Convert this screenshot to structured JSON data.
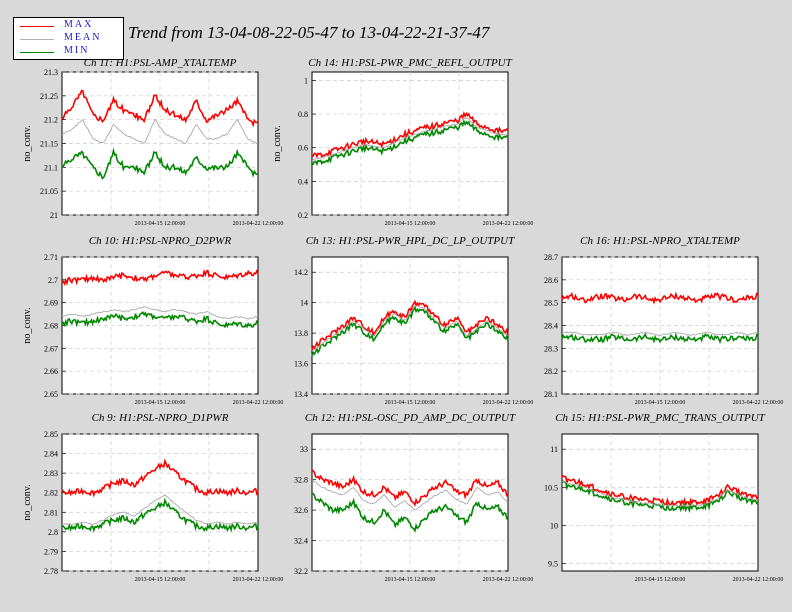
{
  "title": "Trend from 13-04-08-22-05-47 to 13-04-22-21-37-47",
  "legend": [
    {
      "label": "MAX",
      "color": "#ff0000"
    },
    {
      "label": "MEAN",
      "color": "#b0b0b0"
    },
    {
      "label": "MIN",
      "color": "#008800"
    }
  ],
  "colors": {
    "max": "#ff0000",
    "mean": "#a0a0a0",
    "min": "#008800"
  },
  "chart_data": [
    {
      "type": "line",
      "title": "Ch 11: H1:PSL-AMP_XTALTEMP",
      "ylabel": "no_conv.",
      "xlabel": "",
      "x_ticks": [
        "2013-04-15 12:00:00",
        "2013-04-22 12:00:00"
      ],
      "ylim": [
        21.0,
        21.3
      ],
      "y_ticks": [
        "21",
        "21.05",
        "21.1",
        "21.15",
        "21.2",
        "21.25",
        "21.3"
      ],
      "grid": true,
      "series": [
        {
          "name": "MAX",
          "values": [
            21.2,
            21.23,
            21.26,
            21.21,
            21.2,
            21.24,
            21.22,
            21.21,
            21.2,
            21.25,
            21.22,
            21.21,
            21.2,
            21.24,
            21.2,
            21.21,
            21.22,
            21.24,
            21.2,
            21.19
          ]
        },
        {
          "name": "MEAN",
          "values": [
            21.17,
            21.18,
            21.2,
            21.16,
            21.15,
            21.19,
            21.17,
            21.16,
            21.15,
            21.2,
            21.17,
            21.16,
            21.15,
            21.19,
            21.16,
            21.16,
            21.17,
            21.2,
            21.16,
            21.15
          ]
        },
        {
          "name": "MIN",
          "values": [
            21.1,
            21.12,
            21.13,
            21.1,
            21.08,
            21.13,
            21.1,
            21.1,
            21.09,
            21.13,
            21.1,
            21.1,
            21.09,
            21.12,
            21.1,
            21.1,
            21.1,
            21.13,
            21.1,
            21.08
          ]
        }
      ]
    },
    {
      "type": "line",
      "title": "Ch 14: H1:PSL-PWR_PMC_REFL_OUTPUT",
      "ylabel": "no_conv.",
      "xlabel": "",
      "x_ticks": [
        "2013-04-15 12:00:00",
        "2013-04-22 12:00:00"
      ],
      "ylim": [
        0.2,
        1.05
      ],
      "y_ticks": [
        "0.2",
        "0.4",
        "0.6",
        "0.8",
        "1"
      ],
      "grid": true,
      "series": [
        {
          "name": "MAX",
          "values": [
            0.55,
            0.56,
            0.58,
            0.6,
            0.62,
            0.64,
            0.63,
            0.62,
            0.65,
            0.68,
            0.7,
            0.72,
            0.73,
            0.75,
            0.76,
            0.8,
            0.74,
            0.72,
            0.7,
            0.7
          ]
        },
        {
          "name": "MEAN",
          "values": [
            0.53,
            0.54,
            0.56,
            0.58,
            0.6,
            0.62,
            0.61,
            0.6,
            0.63,
            0.66,
            0.68,
            0.7,
            0.71,
            0.73,
            0.74,
            0.78,
            0.72,
            0.7,
            0.68,
            0.68
          ]
        },
        {
          "name": "MIN",
          "values": [
            0.5,
            0.52,
            0.54,
            0.56,
            0.58,
            0.6,
            0.59,
            0.58,
            0.61,
            0.64,
            0.66,
            0.68,
            0.69,
            0.71,
            0.72,
            0.75,
            0.7,
            0.68,
            0.66,
            0.66
          ]
        }
      ]
    },
    {
      "type": "line",
      "title": "Ch 10: H1:PSL-NPRO_D2PWR",
      "ylabel": "no_conv.",
      "xlabel": "",
      "x_ticks": [
        "2013-04-15 12:00:00",
        "2013-04-22 12:00:00"
      ],
      "ylim": [
        2.65,
        2.71
      ],
      "y_ticks": [
        "2.65",
        "2.66",
        "2.67",
        "2.68",
        "2.69",
        "2.7",
        "2.71"
      ],
      "grid": true,
      "series": [
        {
          "name": "MAX",
          "values": [
            2.699,
            2.7,
            2.7,
            2.701,
            2.7,
            2.701,
            2.702,
            2.701,
            2.7,
            2.702,
            2.703,
            2.702,
            2.701,
            2.702,
            2.703,
            2.702,
            2.701,
            2.702,
            2.703,
            2.703
          ]
        },
        {
          "name": "MEAN",
          "values": [
            2.684,
            2.685,
            2.684,
            2.685,
            2.686,
            2.687,
            2.686,
            2.687,
            2.688,
            2.687,
            2.686,
            2.687,
            2.686,
            2.685,
            2.686,
            2.684,
            2.683,
            2.684,
            2.683,
            2.684
          ]
        },
        {
          "name": "MIN",
          "values": [
            2.681,
            2.682,
            2.681,
            2.682,
            2.683,
            2.684,
            2.683,
            2.684,
            2.685,
            2.684,
            2.683,
            2.684,
            2.683,
            2.682,
            2.683,
            2.681,
            2.68,
            2.681,
            2.68,
            2.681
          ]
        }
      ]
    },
    {
      "type": "line",
      "title": "Ch 13: H1:PSL-PWR_HPL_DC_LP_OUTPUT",
      "ylabel": "",
      "xlabel": "",
      "x_ticks": [
        "2013-04-15 12:00:00",
        "2013-04-22 12:00:00"
      ],
      "ylim": [
        13.4,
        14.3
      ],
      "y_ticks": [
        "13.4",
        "13.6",
        "13.8",
        "14",
        "14.2"
      ],
      "grid": true,
      "series": [
        {
          "name": "MAX",
          "values": [
            13.7,
            13.75,
            13.8,
            13.85,
            13.9,
            13.85,
            13.8,
            13.9,
            13.95,
            13.9,
            14.0,
            13.98,
            13.9,
            13.85,
            13.9,
            13.8,
            13.85,
            13.9,
            13.85,
            13.8
          ]
        },
        {
          "name": "MEAN",
          "values": [
            13.68,
            13.73,
            13.78,
            13.83,
            13.88,
            13.83,
            13.78,
            13.88,
            13.93,
            13.88,
            13.98,
            13.96,
            13.88,
            13.83,
            13.88,
            13.78,
            13.83,
            13.88,
            13.83,
            13.78
          ]
        },
        {
          "name": "MIN",
          "values": [
            13.66,
            13.71,
            13.76,
            13.81,
            13.86,
            13.81,
            13.76,
            13.86,
            13.91,
            13.86,
            13.96,
            13.94,
            13.86,
            13.81,
            13.86,
            13.76,
            13.81,
            13.86,
            13.81,
            13.76
          ]
        }
      ]
    },
    {
      "type": "line",
      "title": "Ch 16: H1:PSL-NPRO_XTALTEMP",
      "ylabel": "",
      "xlabel": "",
      "x_ticks": [
        "2013-04-15 12:00:00",
        "2013-04-22 12:00:00"
      ],
      "ylim": [
        28.1,
        28.7
      ],
      "y_ticks": [
        "28.1",
        "28.2",
        "28.3",
        "28.4",
        "28.5",
        "28.6",
        "28.7"
      ],
      "grid": true,
      "series": [
        {
          "name": "MAX",
          "values": [
            28.52,
            28.53,
            28.51,
            28.52,
            28.53,
            28.52,
            28.51,
            28.53,
            28.52,
            28.51,
            28.52,
            28.53,
            28.52,
            28.51,
            28.52,
            28.53,
            28.52,
            28.51,
            28.52,
            28.53
          ]
        },
        {
          "name": "MEAN",
          "values": [
            28.37,
            28.37,
            28.36,
            28.36,
            28.36,
            28.37,
            28.36,
            28.36,
            28.37,
            28.36,
            28.36,
            28.37,
            28.36,
            28.36,
            28.37,
            28.36,
            28.36,
            28.37,
            28.36,
            28.37
          ]
        },
        {
          "name": "MIN",
          "values": [
            28.35,
            28.35,
            28.34,
            28.34,
            28.34,
            28.35,
            28.34,
            28.34,
            28.35,
            28.34,
            28.34,
            28.35,
            28.34,
            28.34,
            28.35,
            28.34,
            28.34,
            28.35,
            28.34,
            28.35
          ]
        }
      ]
    },
    {
      "type": "line",
      "title": "Ch 9: H1:PSL-NPRO_D1PWR",
      "ylabel": "no_conv.",
      "xlabel": "",
      "x_ticks": [
        "2013-04-15 12:00:00",
        "2013-04-22 12:00:00"
      ],
      "ylim": [
        2.78,
        2.85
      ],
      "y_ticks": [
        "2.78",
        "2.79",
        "2.8",
        "2.81",
        "2.82",
        "2.83",
        "2.84",
        "2.85"
      ],
      "grid": true,
      "series": [
        {
          "name": "MAX",
          "values": [
            2.82,
            2.82,
            2.821,
            2.82,
            2.822,
            2.825,
            2.826,
            2.824,
            2.828,
            2.832,
            2.835,
            2.83,
            2.826,
            2.822,
            2.82,
            2.821,
            2.82,
            2.821,
            2.82,
            2.821
          ]
        },
        {
          "name": "MEAN",
          "values": [
            2.804,
            2.804,
            2.805,
            2.804,
            2.806,
            2.809,
            2.81,
            2.808,
            2.812,
            2.816,
            2.819,
            2.814,
            2.81,
            2.806,
            2.804,
            2.805,
            2.804,
            2.805,
            2.804,
            2.805
          ]
        },
        {
          "name": "MIN",
          "values": [
            2.802,
            2.802,
            2.803,
            2.802,
            2.804,
            2.806,
            2.807,
            2.805,
            2.809,
            2.812,
            2.815,
            2.81,
            2.806,
            2.803,
            2.802,
            2.803,
            2.802,
            2.803,
            2.802,
            2.803
          ]
        }
      ]
    },
    {
      "type": "line",
      "title": "Ch 12: H1:PSL-OSC_PD_AMP_DC_OUTPUT",
      "ylabel": "",
      "xlabel": "",
      "x_ticks": [
        "2013-04-15 12:00:00",
        "2013-04-22 12:00:00"
      ],
      "ylim": [
        32.2,
        33.1
      ],
      "y_ticks": [
        "32.2",
        "32.4",
        "32.6",
        "32.8",
        "33"
      ],
      "grid": true,
      "series": [
        {
          "name": "MAX",
          "values": [
            32.85,
            32.8,
            32.78,
            32.75,
            32.8,
            32.72,
            32.7,
            32.75,
            32.68,
            32.72,
            32.65,
            32.7,
            32.75,
            32.78,
            32.72,
            32.7,
            32.8,
            32.75,
            32.78,
            32.7
          ]
        },
        {
          "name": "MEAN",
          "values": [
            32.8,
            32.75,
            32.72,
            32.7,
            32.75,
            32.66,
            32.64,
            32.7,
            32.62,
            32.66,
            32.6,
            32.65,
            32.7,
            32.73,
            32.67,
            32.64,
            32.75,
            32.7,
            32.72,
            32.65
          ]
        },
        {
          "name": "MIN",
          "values": [
            32.7,
            32.65,
            32.6,
            32.6,
            32.65,
            32.55,
            32.52,
            32.6,
            32.5,
            32.55,
            32.48,
            32.55,
            32.6,
            32.62,
            32.56,
            32.52,
            32.65,
            32.6,
            32.62,
            32.55
          ]
        }
      ]
    },
    {
      "type": "line",
      "title": "Ch 15: H1:PSL-PWR_PMC_TRANS_OUTPUT",
      "ylabel": "",
      "xlabel": "",
      "x_ticks": [
        "2013-04-15 12:00:00",
        "2013-04-22 12:00:00"
      ],
      "ylim": [
        9.4,
        11.2
      ],
      "y_ticks": [
        "9.5",
        "10",
        "10.5",
        "11"
      ],
      "grid": true,
      "series": [
        {
          "name": "MAX",
          "values": [
            10.62,
            10.58,
            10.55,
            10.5,
            10.45,
            10.4,
            10.38,
            10.35,
            10.33,
            10.32,
            10.3,
            10.3,
            10.3,
            10.3,
            10.32,
            10.38,
            10.5,
            10.45,
            10.4,
            10.38
          ]
        },
        {
          "name": "MEAN",
          "values": [
            10.58,
            10.54,
            10.51,
            10.46,
            10.41,
            10.36,
            10.34,
            10.31,
            10.29,
            10.28,
            10.26,
            10.26,
            10.26,
            10.26,
            10.28,
            10.34,
            10.46,
            10.41,
            10.36,
            10.34
          ]
        },
        {
          "name": "MIN",
          "values": [
            10.55,
            10.5,
            10.48,
            10.43,
            10.38,
            10.33,
            10.31,
            10.28,
            10.26,
            10.25,
            10.23,
            10.23,
            10.23,
            10.23,
            10.25,
            10.31,
            10.43,
            10.38,
            10.33,
            10.31
          ]
        }
      ]
    }
  ]
}
